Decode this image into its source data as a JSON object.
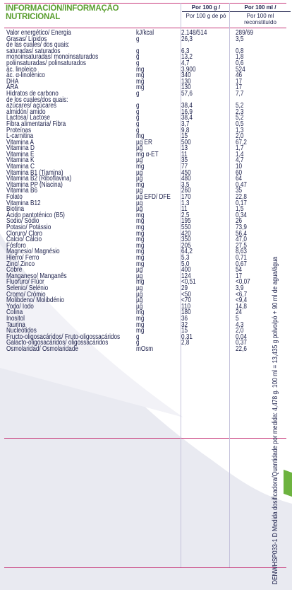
{
  "header": {
    "title_line1": "INFORMACIÓN/INFORMAÇÃO",
    "title_line2": "NUTRICIONAL",
    "col1_line1": "Por 100 g /",
    "col1_line2": "Por 100 g de pó",
    "col2_line1": "Por 100 ml /",
    "col2_line2": "Por 100 ml reconstituído"
  },
  "rows": [
    {
      "name": "Valor energético/ Energia",
      "unit": "kJ/kcal",
      "v1": "2.148/514",
      "v2": "289/69"
    },
    {
      "name": "Grasas/ Lípidos",
      "unit": "g",
      "v1": "26,3",
      "v2": "3,5"
    },
    {
      "name": "de las cuales/ dos quais:",
      "unit": "",
      "v1": "",
      "v2": ""
    },
    {
      "name": " saturadas/ saturados",
      "unit": "g",
      "v1": "6,3",
      "v2": "0,8"
    },
    {
      "name": " monoinsaturadas/ monoinsaturados",
      "unit": "g",
      "v1": "13,2",
      "v2": "1,8"
    },
    {
      "name": " poliinsaturadas/ polinsaturados",
      "unit": "g",
      "v1": "4,7",
      "v2": "0,6"
    },
    {
      "name": " ác. linoleico",
      "unit": "mg",
      "v1": "3.900",
      "v2": "524"
    },
    {
      "name": " ác. α-linolénico",
      "unit": "mg",
      "v1": "340",
      "v2": "46"
    },
    {
      "name": " DHA",
      "unit": "mg",
      "v1": "130",
      "v2": "17"
    },
    {
      "name": " ARA",
      "unit": "mg",
      "v1": "130",
      "v2": "17"
    },
    {
      "name": "Hidratos de carbono",
      "unit": "g",
      "v1": "57,6",
      "v2": "7,7"
    },
    {
      "name": "de los cuales/dos quais:",
      "unit": "",
      "v1": "",
      "v2": ""
    },
    {
      "name": " azúcares/ açúcares",
      "unit": "g",
      "v1": "38,4",
      "v2": "5,2"
    },
    {
      "name": " almidón/ amido",
      "unit": "g",
      "v1": "16,9",
      "v2": "2,3"
    },
    {
      "name": "Lactosa/ Lactose",
      "unit": "g",
      "v1": "38,4",
      "v2": "5,2"
    },
    {
      "name": "Fibra alimentaria/ Fibra",
      "unit": "g",
      "v1": "3,7",
      "v2": "0,5"
    },
    {
      "name": "Proteínas",
      "unit": "g",
      "v1": "9,8",
      "v2": "1,3"
    },
    {
      "name": "L-carnitina",
      "unit": "mg",
      "v1": "15",
      "v2": "2,0"
    },
    {
      "name": "Vitamina A",
      "unit": "µg ER",
      "v1": "500",
      "v2": "67,2"
    },
    {
      "name": "Vitamina D",
      "unit": "µg",
      "v1": "13",
      "v2": "1,7"
    },
    {
      "name": "Vitamina E",
      "unit": "mg α-ET",
      "v1": "11",
      "v2": "1,4"
    },
    {
      "name": "Vitamina K",
      "unit": "µg",
      "v1": "35",
      "v2": "4,7"
    },
    {
      "name": "Vitamina C",
      "unit": "mg",
      "v1": "77",
      "v2": "10"
    },
    {
      "name": "Vitamina B1 (Tiamina)",
      "unit": "µg",
      "v1": "450",
      "v2": "60"
    },
    {
      "name": "Vitamina B2 (Riboflavina)",
      "unit": "µg",
      "v1": "480",
      "v2": "64"
    },
    {
      "name": "Vitamina PP (Niacina)",
      "unit": "mg",
      "v1": "3,5",
      "v2": "0,47"
    },
    {
      "name": "Vitamina B6",
      "unit": "µg",
      "v1": "260",
      "v2": "35"
    },
    {
      "name": "Folato",
      "unit": "µg EFD/ DFE",
      "v1": "170",
      "v2": "22,8"
    },
    {
      "name": "Vitamina B12",
      "unit": "µg",
      "v1": "1,3",
      "v2": "0,17"
    },
    {
      "name": "Biotina",
      "unit": "µg",
      "v1": "11",
      "v2": "1,5"
    },
    {
      "name": "Ácido pantoténico (B5)",
      "unit": "mg",
      "v1": "2,5",
      "v2": "0,34"
    },
    {
      "name": "Sodio/ Sódio",
      "unit": "mg",
      "v1": "195",
      "v2": "26"
    },
    {
      "name": "Potasio/ Potássio",
      "unit": "mg",
      "v1": "550",
      "v2": "73,9"
    },
    {
      "name": "Cloruro/ Cloro",
      "unit": "mg",
      "v1": "420",
      "v2": "56,4"
    },
    {
      "name": "Calcio/ Cálcio",
      "unit": "mg",
      "v1": "350",
      "v2": "47,0"
    },
    {
      "name": "Fósforo",
      "unit": "mg",
      "v1": "205",
      "v2": "27,5"
    },
    {
      "name": "Magnesio/ Magnésio",
      "unit": "mg",
      "v1": "64,2",
      "v2": "8,63"
    },
    {
      "name": "Hierro/ Ferro",
      "unit": "mg",
      "v1": "5,3",
      "v2": "0,71"
    },
    {
      "name": "Zinc/ Zinco",
      "unit": "mg",
      "v1": "5,0",
      "v2": "0,67"
    },
    {
      "name": "Cobre",
      "unit": "µg",
      "v1": "400",
      "v2": "54"
    },
    {
      "name": "Manganeso/ Manganês",
      "unit": "µg",
      "v1": "124",
      "v2": "17"
    },
    {
      "name": "Fluoruro/ Flúor",
      "unit": "mg",
      "v1": "<0,51",
      "v2": "<0,07"
    },
    {
      "name": "Selenio/ Selénio",
      "unit": "µg",
      "v1": "29",
      "v2": "3,9"
    },
    {
      "name": "Cromo/ Crómio",
      "unit": "µg",
      "v1": "<50",
      "v2": "<6,7"
    },
    {
      "name": "Molibdeno/ Molibdénio",
      "unit": "µg",
      "v1": "<70",
      "v2": "<9,4"
    },
    {
      "name": "Yodo/ Iodo",
      "unit": "µg",
      "v1": "110",
      "v2": "14,8"
    },
    {
      "name": "Colina",
      "unit": "mg",
      "v1": "180",
      "v2": "24"
    },
    {
      "name": "Inositol",
      "unit": "mg",
      "v1": "36",
      "v2": "5"
    },
    {
      "name": "Taurina",
      "unit": "mg",
      "v1": "32",
      "v2": "4,3"
    },
    {
      "name": "Nucleótidos",
      "unit": "mg",
      "v1": "15",
      "v2": "2,0"
    },
    {
      "name": "Fructo-oligosacáridos/ Fruto-oligossacáridos",
      "unit": "g",
      "v1": "0,31",
      "v2": "0,04"
    },
    {
      "name": "Galacto-oligosacáridos/ oligossacáridos",
      "unit": "g",
      "v1": "2,8",
      "v2": "0,37"
    },
    {
      "name": "Osmolaridad/ Osmolaridade",
      "unit": "mOsm",
      "v1": "",
      "v2": "22,6"
    }
  ],
  "side_text": "DENWHSP033-1 D    Medida dosificadora/Quantidade por medida: 4,478 g. 100 ml = 13,435 g polvo/pó + 90 ml de agua/água",
  "colors": {
    "title": "#5a9e2f",
    "text": "#1b1f4a",
    "rule": "#c83c7c"
  }
}
